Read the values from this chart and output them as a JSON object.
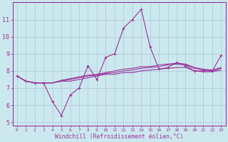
{
  "title": "",
  "xlabel": "Windchill (Refroidissement éolien,°C)",
  "bg_color": "#cce8ef",
  "grid_color": "#aac8d4",
  "line_color": "#993399",
  "xlim": [
    -0.5,
    23.5
  ],
  "ylim": [
    4.8,
    12.0
  ],
  "yticks": [
    5,
    6,
    7,
    8,
    9,
    10,
    11
  ],
  "xticks": [
    0,
    1,
    2,
    3,
    4,
    5,
    6,
    7,
    8,
    9,
    10,
    11,
    12,
    13,
    14,
    15,
    16,
    17,
    18,
    19,
    20,
    21,
    22,
    23
  ],
  "series": [
    [
      7.7,
      7.4,
      7.3,
      7.3,
      6.2,
      5.4,
      6.6,
      7.0,
      8.3,
      7.5,
      8.8,
      9.0,
      10.5,
      11.0,
      11.6,
      9.4,
      8.1,
      8.2,
      8.5,
      8.3,
      8.0,
      8.0,
      8.0,
      8.9
    ],
    [
      7.7,
      7.4,
      7.3,
      7.3,
      7.3,
      7.4,
      7.4,
      7.5,
      7.6,
      7.7,
      7.8,
      7.8,
      7.9,
      7.9,
      8.0,
      8.05,
      8.1,
      8.15,
      8.2,
      8.2,
      8.0,
      7.95,
      7.95,
      8.05
    ],
    [
      7.7,
      7.4,
      7.3,
      7.3,
      7.3,
      7.4,
      7.5,
      7.6,
      7.7,
      7.75,
      7.85,
      7.9,
      8.0,
      8.05,
      8.15,
      8.2,
      8.25,
      8.35,
      8.4,
      8.35,
      8.15,
      8.05,
      8.0,
      8.15
    ],
    [
      7.7,
      7.4,
      7.3,
      7.3,
      7.3,
      7.45,
      7.55,
      7.65,
      7.75,
      7.8,
      7.9,
      8.0,
      8.1,
      8.15,
      8.25,
      8.25,
      8.35,
      8.4,
      8.45,
      8.4,
      8.2,
      8.1,
      8.05,
      8.2
    ]
  ]
}
